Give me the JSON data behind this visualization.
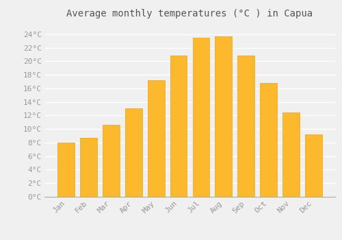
{
  "title": "Average monthly temperatures (°C ) in Capua",
  "months": [
    "Jan",
    "Feb",
    "Mar",
    "Apr",
    "May",
    "Jun",
    "Jul",
    "Aug",
    "Sep",
    "Oct",
    "Nov",
    "Dec"
  ],
  "values": [
    8.0,
    8.7,
    10.6,
    13.1,
    17.2,
    20.8,
    23.5,
    23.7,
    20.8,
    16.8,
    12.4,
    9.2
  ],
  "bar_color": "#FDB92E",
  "bar_edge_color": "#E8A020",
  "background_color": "#F0F0F0",
  "grid_color": "#FFFFFF",
  "ylabel_ticks": [
    0,
    2,
    4,
    6,
    8,
    10,
    12,
    14,
    16,
    18,
    20,
    22,
    24
  ],
  "ylim": [
    0,
    25.5
  ],
  "title_fontsize": 10,
  "tick_fontsize": 8,
  "font_family": "monospace",
  "tick_color": "#999999",
  "title_color": "#555555"
}
